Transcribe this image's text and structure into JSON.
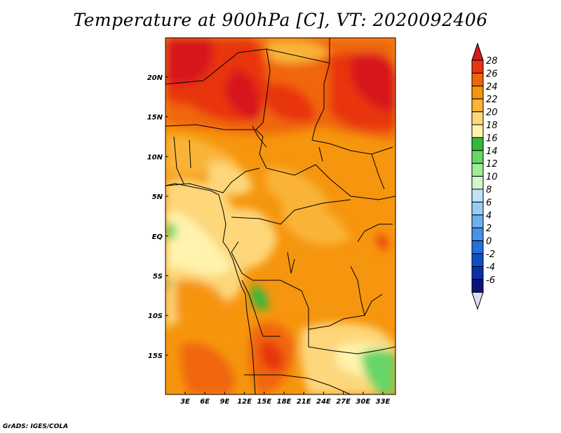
{
  "title": "Temperature at 900hPa [C], VT: 2020092406",
  "credit": "GrADS: IGES/COLA",
  "map": {
    "lat_labels": [
      "20N",
      "15N",
      "10N",
      "5N",
      "EQ",
      "5S",
      "10S",
      "15S"
    ],
    "lon_labels": [
      "3E",
      "6E",
      "9E",
      "12E",
      "15E",
      "18E",
      "21E",
      "24E",
      "27E",
      "30E",
      "33E"
    ]
  },
  "colorbar": {
    "levels": [
      "28",
      "26",
      "24",
      "22",
      "20",
      "18",
      "16",
      "14",
      "12",
      "10",
      "8",
      "6",
      "4",
      "2",
      "0",
      "-2",
      "-4",
      "-6"
    ],
    "colors": [
      "#d7191c",
      "#e8350f",
      "#f0660e",
      "#f6950e",
      "#f9b437",
      "#fdd77a",
      "#fff3ad",
      "#37b83a",
      "#67d568",
      "#a0eb9c",
      "#d3f7cd",
      "#bee3fb",
      "#96cdf5",
      "#6cb1ef",
      "#4592e8",
      "#2171df",
      "#0f50c4",
      "#0a2faa",
      "#0a137c",
      "#dcdcf5"
    ]
  }
}
